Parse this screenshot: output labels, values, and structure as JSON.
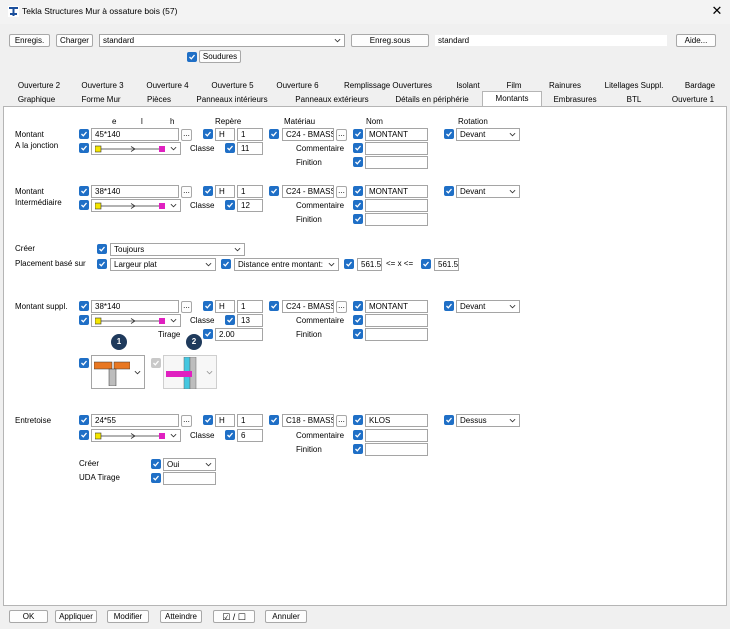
{
  "window": {
    "title": "Tekla Structures  Mur à ossature bois (57)",
    "close": "✕"
  },
  "toolbar": {
    "save_label": "Enregis.",
    "load_label": "Charger",
    "preset_value": "standard",
    "save_as_label": "Enreg.sous",
    "save_as_value": "standard",
    "help_label": "Aide...",
    "welds_label": "Soudures"
  },
  "tabs": {
    "row1": [
      "Ouverture 2",
      "Ouverture 3",
      "Ouverture 4",
      "Ouverture 5",
      "Ouverture 6",
      "Remplissage Ouvertures",
      "Isolant",
      "Film",
      "Rainures",
      "Litellages Suppl.",
      "Bardage"
    ],
    "row2": [
      "Graphique",
      "Forme Mur",
      "Pièces",
      "Panneaux intérieurs",
      "Panneaux extérieurs",
      "Détails en périphérie",
      "Montants",
      "Embrasures",
      "BTL",
      "Ouverture 1"
    ],
    "active": "Montants"
  },
  "headers": {
    "e": "e",
    "l": "l",
    "h": "h",
    "repere": "Repère",
    "materiau": "Matériau",
    "nom": "Nom",
    "rotation": "Rotation"
  },
  "common": {
    "classe": "Classe",
    "commentaire": "Commentaire",
    "finition": "Finition",
    "prefix": "H",
    "dots": "..."
  },
  "sections": {
    "junction": {
      "label1": "Montant",
      "label2": "A la jonction",
      "profile": "45*140",
      "num": "1",
      "classe": "11",
      "material": "C24 - BMASSI",
      "name": "MONTANT",
      "rotation": "Devant"
    },
    "intermediate": {
      "label1": "Montant",
      "label2": "Intermédiaire",
      "profile": "38*140",
      "num": "1",
      "classe": "12",
      "material": "C24 - BMASSI",
      "name": "MONTANT",
      "rotation": "Devant"
    },
    "create": {
      "label": "Créer",
      "value": "Toujours",
      "placement_label": "Placement basé sur",
      "placement_value": "Largeur plat",
      "distance_value": "Distance entre montant:",
      "min": "561.50",
      "op": "<= x <=",
      "max": "561.50"
    },
    "extra": {
      "label1": "Montant suppl.",
      "profile": "38*140",
      "num": "1",
      "classe": "13",
      "material": "C24 - BMASSI",
      "name": "MONTANT",
      "rotation": "Devant",
      "tirage_label": "Tirage",
      "tirage": "2.00",
      "bubble1": "1",
      "bubble2": "2"
    },
    "brace": {
      "label1": "Entretoise",
      "profile": "24*55",
      "num": "1",
      "classe": "6",
      "material": "C18 - BMASSI",
      "name": "KLOS",
      "rotation": "Dessus",
      "create_label": "Créer",
      "create_value": "Oui",
      "uda_label": "UDA Tirage"
    }
  },
  "bottom": {
    "ok": "OK",
    "apply": "Appliquer",
    "modify": "Modifier",
    "get": "Atteindre",
    "toggle": "☑ / ☐",
    "cancel": "Annuler"
  },
  "colors": {
    "accent": "#1f6fc6",
    "orange": "#e87722",
    "magenta": "#e020c0",
    "cyan": "#45c7e0",
    "yellow": "#f4e600"
  }
}
